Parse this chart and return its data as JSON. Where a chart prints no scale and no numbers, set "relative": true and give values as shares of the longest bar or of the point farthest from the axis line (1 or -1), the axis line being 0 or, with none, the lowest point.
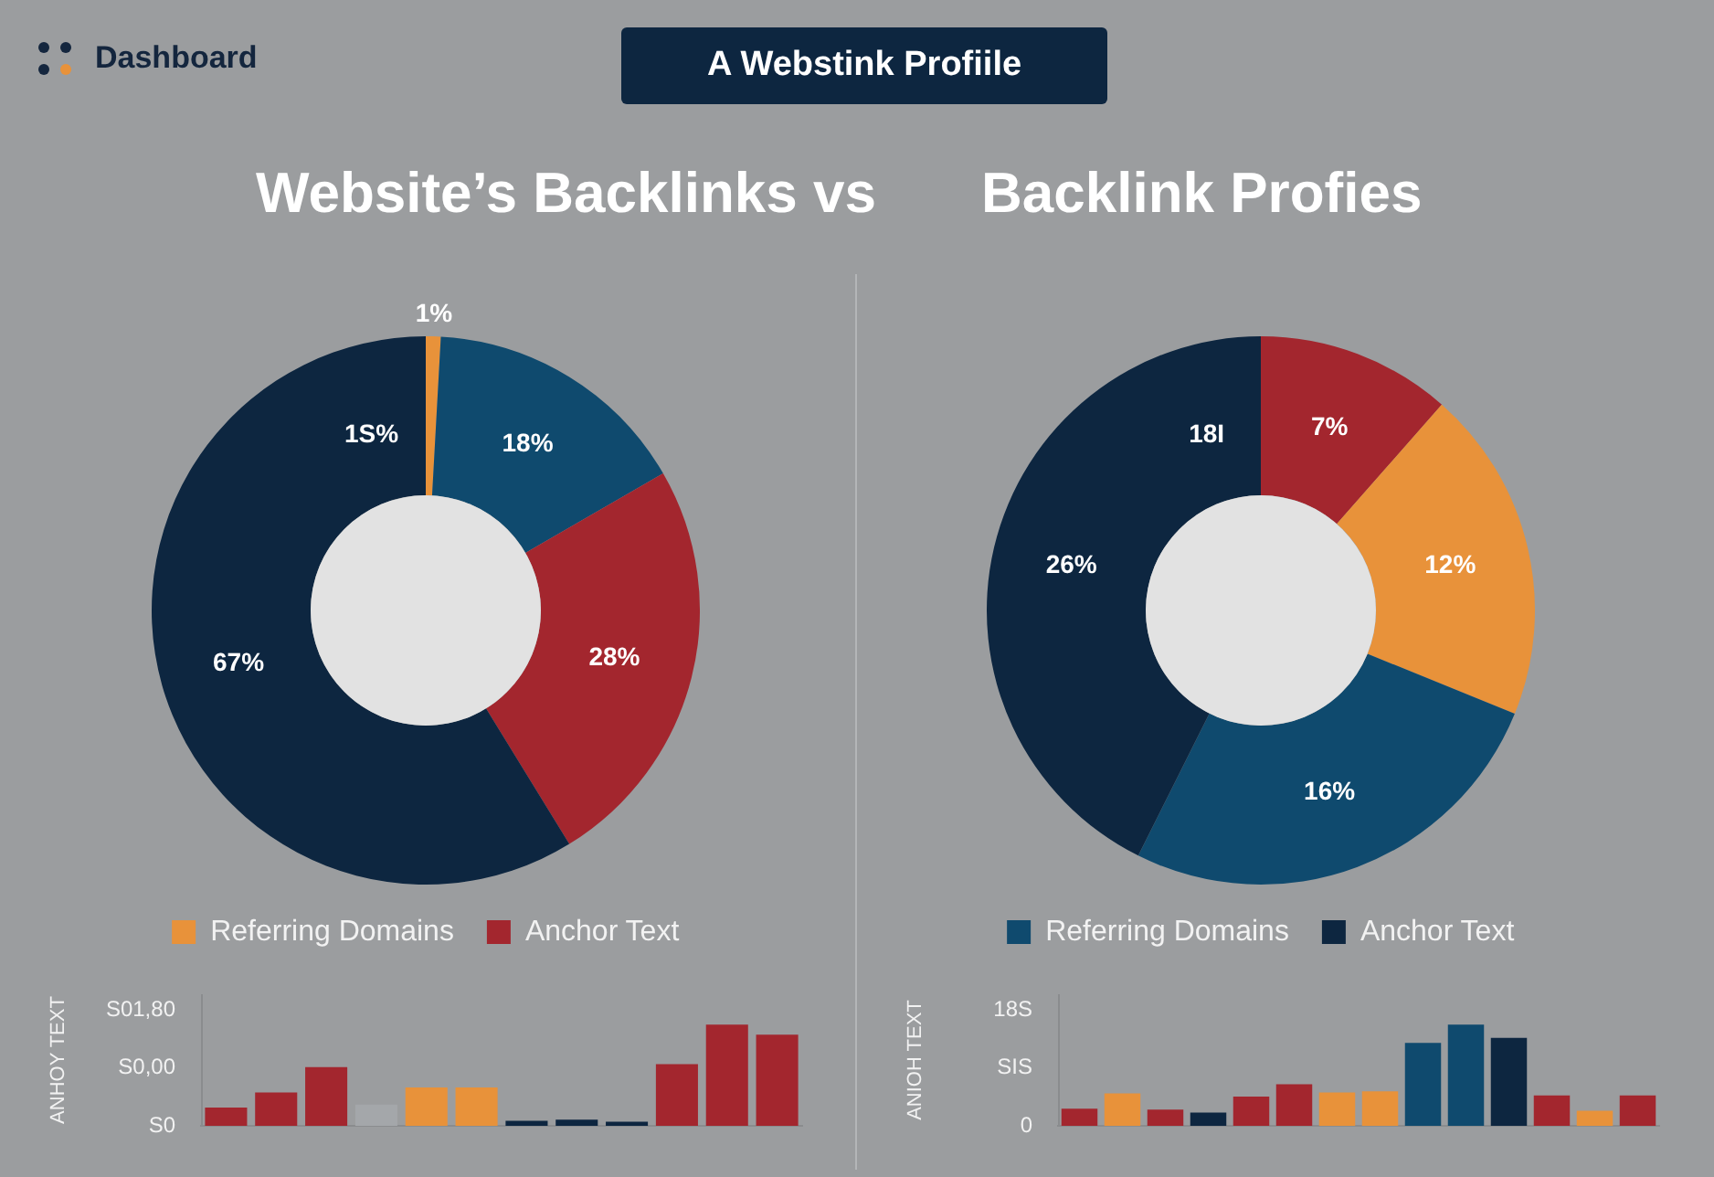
{
  "chart_data": [
    {
      "type": "donut",
      "title": "Website’s Backlinks  vs",
      "categories": [
        "Referring Domains",
        null,
        "Anchor Text",
        null
      ],
      "values": [
        1,
        18,
        28,
        67
      ],
      "colors": [
        "#e8923a",
        "#0f4a6e",
        "#a3262e",
        "#0d2640"
      ],
      "value_labels": [
        "1%",
        "18%",
        "28%",
        "67%"
      ],
      "annotations": [
        "Dashboard",
        "A Webstink Profiile",
        "1S%"
      ],
      "legend": "bottom"
    },
    {
      "type": "donut",
      "title": "Backlink Profies",
      "categories": [
        null,
        null,
        "Referring Domains",
        "Anchor Text"
      ],
      "values": [
        7,
        12,
        16,
        26
      ],
      "colors": [
        "#a3262e",
        "#e8923a",
        "#0f4a6e",
        "#0d2640"
      ],
      "value_labels": [
        "7%",
        "12%",
        "16%",
        "26%"
      ],
      "annotations": [
        "18I"
      ],
      "legend": "bottom"
    },
    {
      "type": "bar",
      "relative": true,
      "ylabel": "ANHOY TEXT",
      "categories": [
        null,
        null,
        null,
        null,
        null,
        null,
        null,
        null,
        null,
        null,
        null,
        null
      ],
      "values": [
        0.18,
        0.33,
        0.58,
        0.21,
        0.38,
        0.38,
        0.05,
        0.06,
        0.04,
        0.61,
        1,
        0.9
      ],
      "colors": [
        "#a3262e",
        "#a3262e",
        "#a3262e",
        "#a4a7aa",
        "#e8923a",
        "#e8923a",
        "#0d2640",
        "#0d2640",
        "#0d2640",
        "#a3262e",
        "#a3262e",
        "#a3262e"
      ],
      "annotations": [
        "S0",
        "S0,00",
        "S01,80"
      ]
    },
    {
      "type": "bar",
      "relative": true,
      "ylabel": "ANIOH TEXT",
      "categories": [
        null,
        null,
        null,
        null,
        null,
        null,
        null,
        null,
        null,
        null,
        null,
        null,
        null,
        null
      ],
      "values": [
        0.17,
        0.32,
        0.16,
        0.13,
        0.29,
        0.41,
        0.33,
        0.34,
        0.82,
        1,
        0.87,
        0.3,
        0.15,
        0.3
      ],
      "colors": [
        "#a3262e",
        "#e8923a",
        "#a3262e",
        "#0d2640",
        "#a3262e",
        "#a3262e",
        "#e8923a",
        "#e8923a",
        "#0f4a6e",
        "#0f4a6e",
        "#0d2640",
        "#a3262e",
        "#e8923a",
        "#a3262e"
      ],
      "annotations": [
        "0",
        "SIS",
        "18S"
      ]
    }
  ]
}
